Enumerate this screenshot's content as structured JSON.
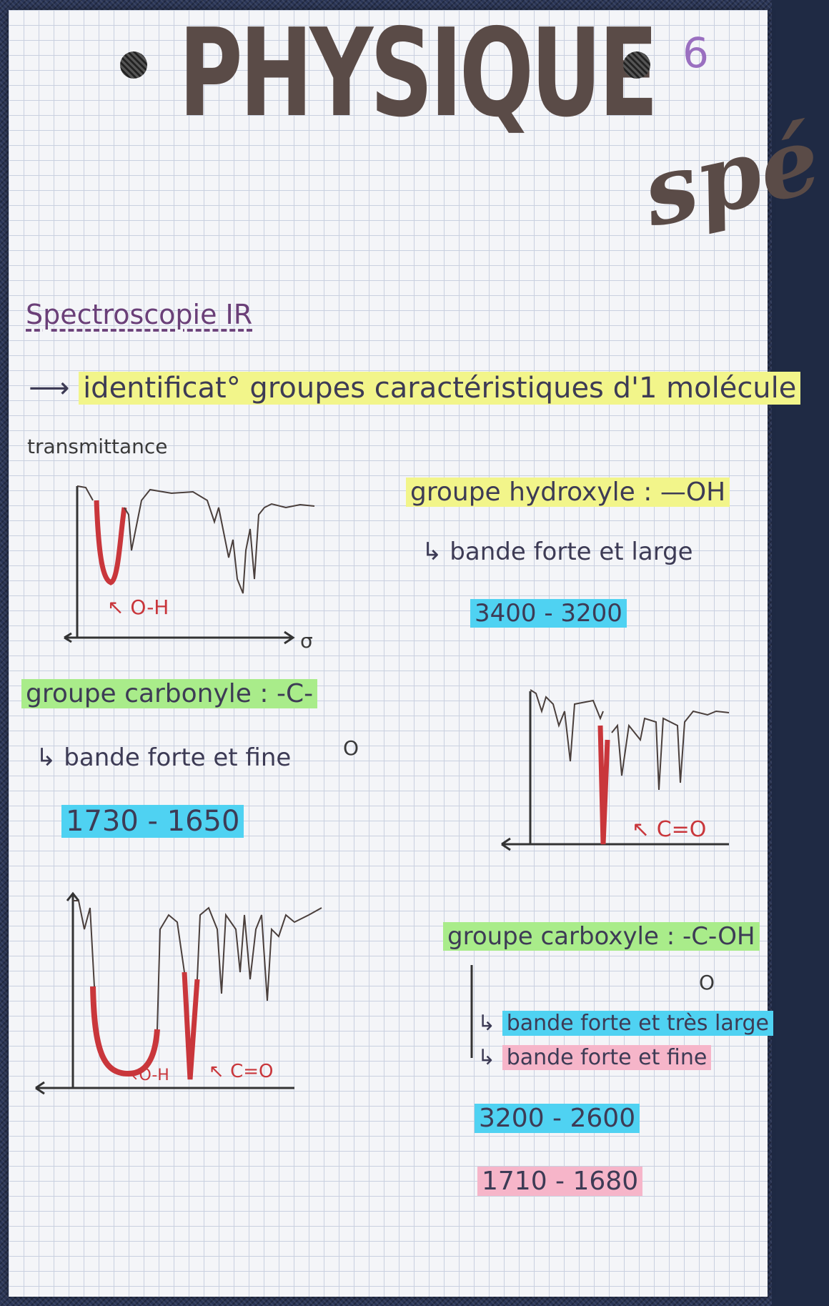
{
  "header": {
    "title": "PHYSIQUE",
    "page_number": "6",
    "corner_text": "spé"
  },
  "section": {
    "title": "Spectroscopie IR",
    "intro": "identificat° groupes caractéristiques d'1 molécule"
  },
  "spectrum_1": {
    "y_axis_label": "transmittance",
    "origin_label": "σ",
    "peak_label": "O-H"
  },
  "hydroxyle": {
    "title": "groupe hydroxyle : —OH",
    "description": "bande forte et large",
    "range": "3400 - 3200"
  },
  "carbonyle": {
    "title": "groupe carbonyle : -C-",
    "formula_bottom": "O",
    "description": "bande forte et fine",
    "range": "1730 - 1650"
  },
  "spectrum_2": {
    "peak_label": "C=O"
  },
  "spectrum_3": {
    "peak_label_1": "O-H",
    "peak_label_2": "C=O"
  },
  "carboxyle": {
    "title": "groupe carboxyle : -C-OH",
    "formula_bottom": "O",
    "description_1": "bande forte et très large",
    "description_2": "bande forte et fine",
    "range_1": "3200 - 2600",
    "range_2": "1710 - 1680"
  },
  "colors": {
    "ink": "#3d3b55",
    "red_peak": "#c9363b",
    "highlight_yellow": "#f2f58a",
    "highlight_green": "#a9ec8a",
    "highlight_blue": "#4fd2f2",
    "highlight_pink": "#f6b5c9"
  }
}
